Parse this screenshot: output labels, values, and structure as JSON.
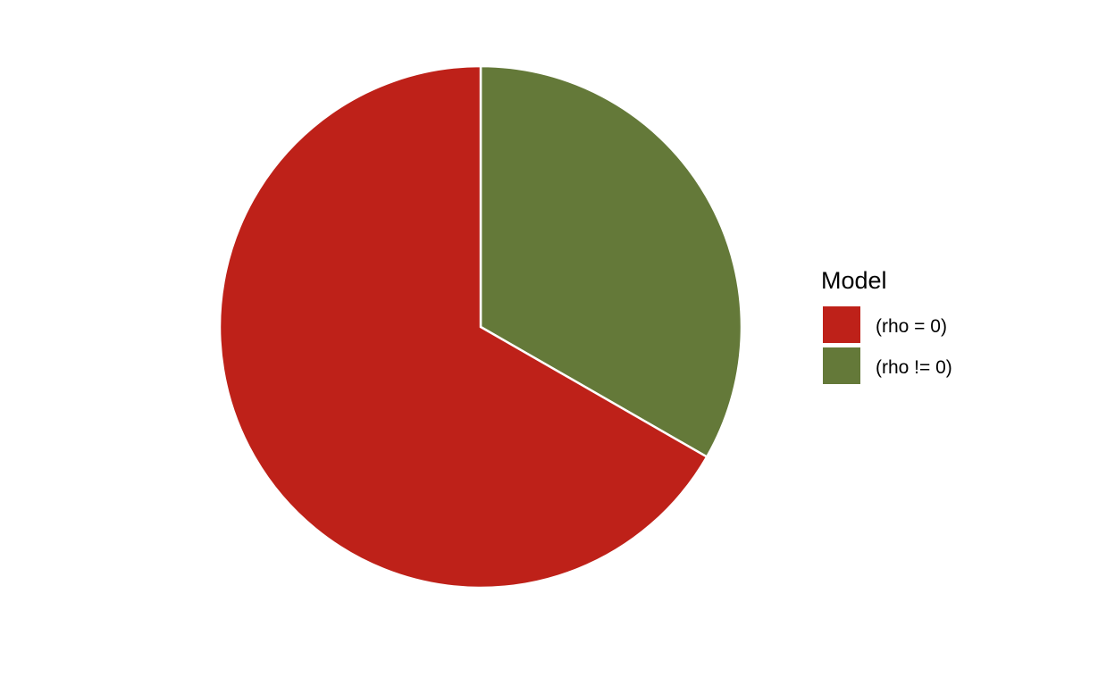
{
  "chart_data": {
    "type": "pie",
    "slices": [
      {
        "label": "(rho = 0)",
        "value": 66.7,
        "color": "#BE2119"
      },
      {
        "label": "(rho != 0)",
        "value": 33.3,
        "color": "#647939"
      }
    ],
    "legend": {
      "title": "Model",
      "placement": "right",
      "items": [
        {
          "label": "(rho = 0)",
          "color": "#BE2119"
        },
        {
          "label": "(rho != 0)",
          "color": "#647939"
        }
      ]
    }
  }
}
